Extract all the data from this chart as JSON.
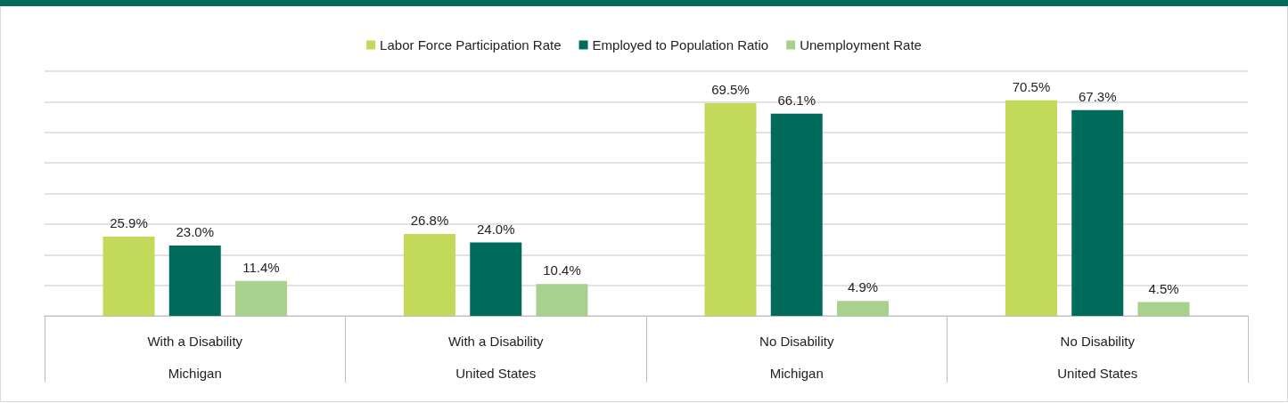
{
  "chart_data": {
    "type": "bar",
    "categories": [
      "With a Disability\nMichigan",
      "With a Disability\nUnited States",
      "No Disability\nMichigan",
      "No Disability\nUnited States"
    ],
    "series": [
      {
        "name": "Labor Force Participation Rate",
        "color": "#c2d959",
        "values": [
          25.9,
          26.8,
          69.5,
          70.5
        ],
        "value_labels": [
          "25.9%",
          "26.8%",
          "69.5%",
          "70.5%"
        ]
      },
      {
        "name": "Employed to Population Ratio",
        "color": "#006b5b",
        "values": [
          23.0,
          24.0,
          66.1,
          67.3
        ],
        "value_labels": [
          "23.0%",
          "24.0%",
          "66.1%",
          "67.3%"
        ]
      },
      {
        "name": "Unemployment Rate",
        "color": "#a9d18e",
        "values": [
          11.4,
          10.4,
          4.9,
          4.5
        ],
        "value_labels": [
          "11.4%",
          "10.4%",
          "4.9%",
          "4.5%"
        ]
      }
    ],
    "ylim": [
      0,
      80
    ],
    "yticks": [
      {
        "value": 0,
        "label": null
      },
      {
        "value": 10,
        "label": null
      },
      {
        "value": 20,
        "label": null
      },
      {
        "value": 30,
        "label": null
      },
      {
        "value": 40,
        "label": null
      },
      {
        "value": 50,
        "label": null
      },
      {
        "value": 60,
        "label": null
      },
      {
        "value": 70,
        "label": null
      },
      {
        "value": 80,
        "label": null
      }
    ],
    "tick_labels": "x",
    "grid": "y",
    "legend": "top"
  }
}
